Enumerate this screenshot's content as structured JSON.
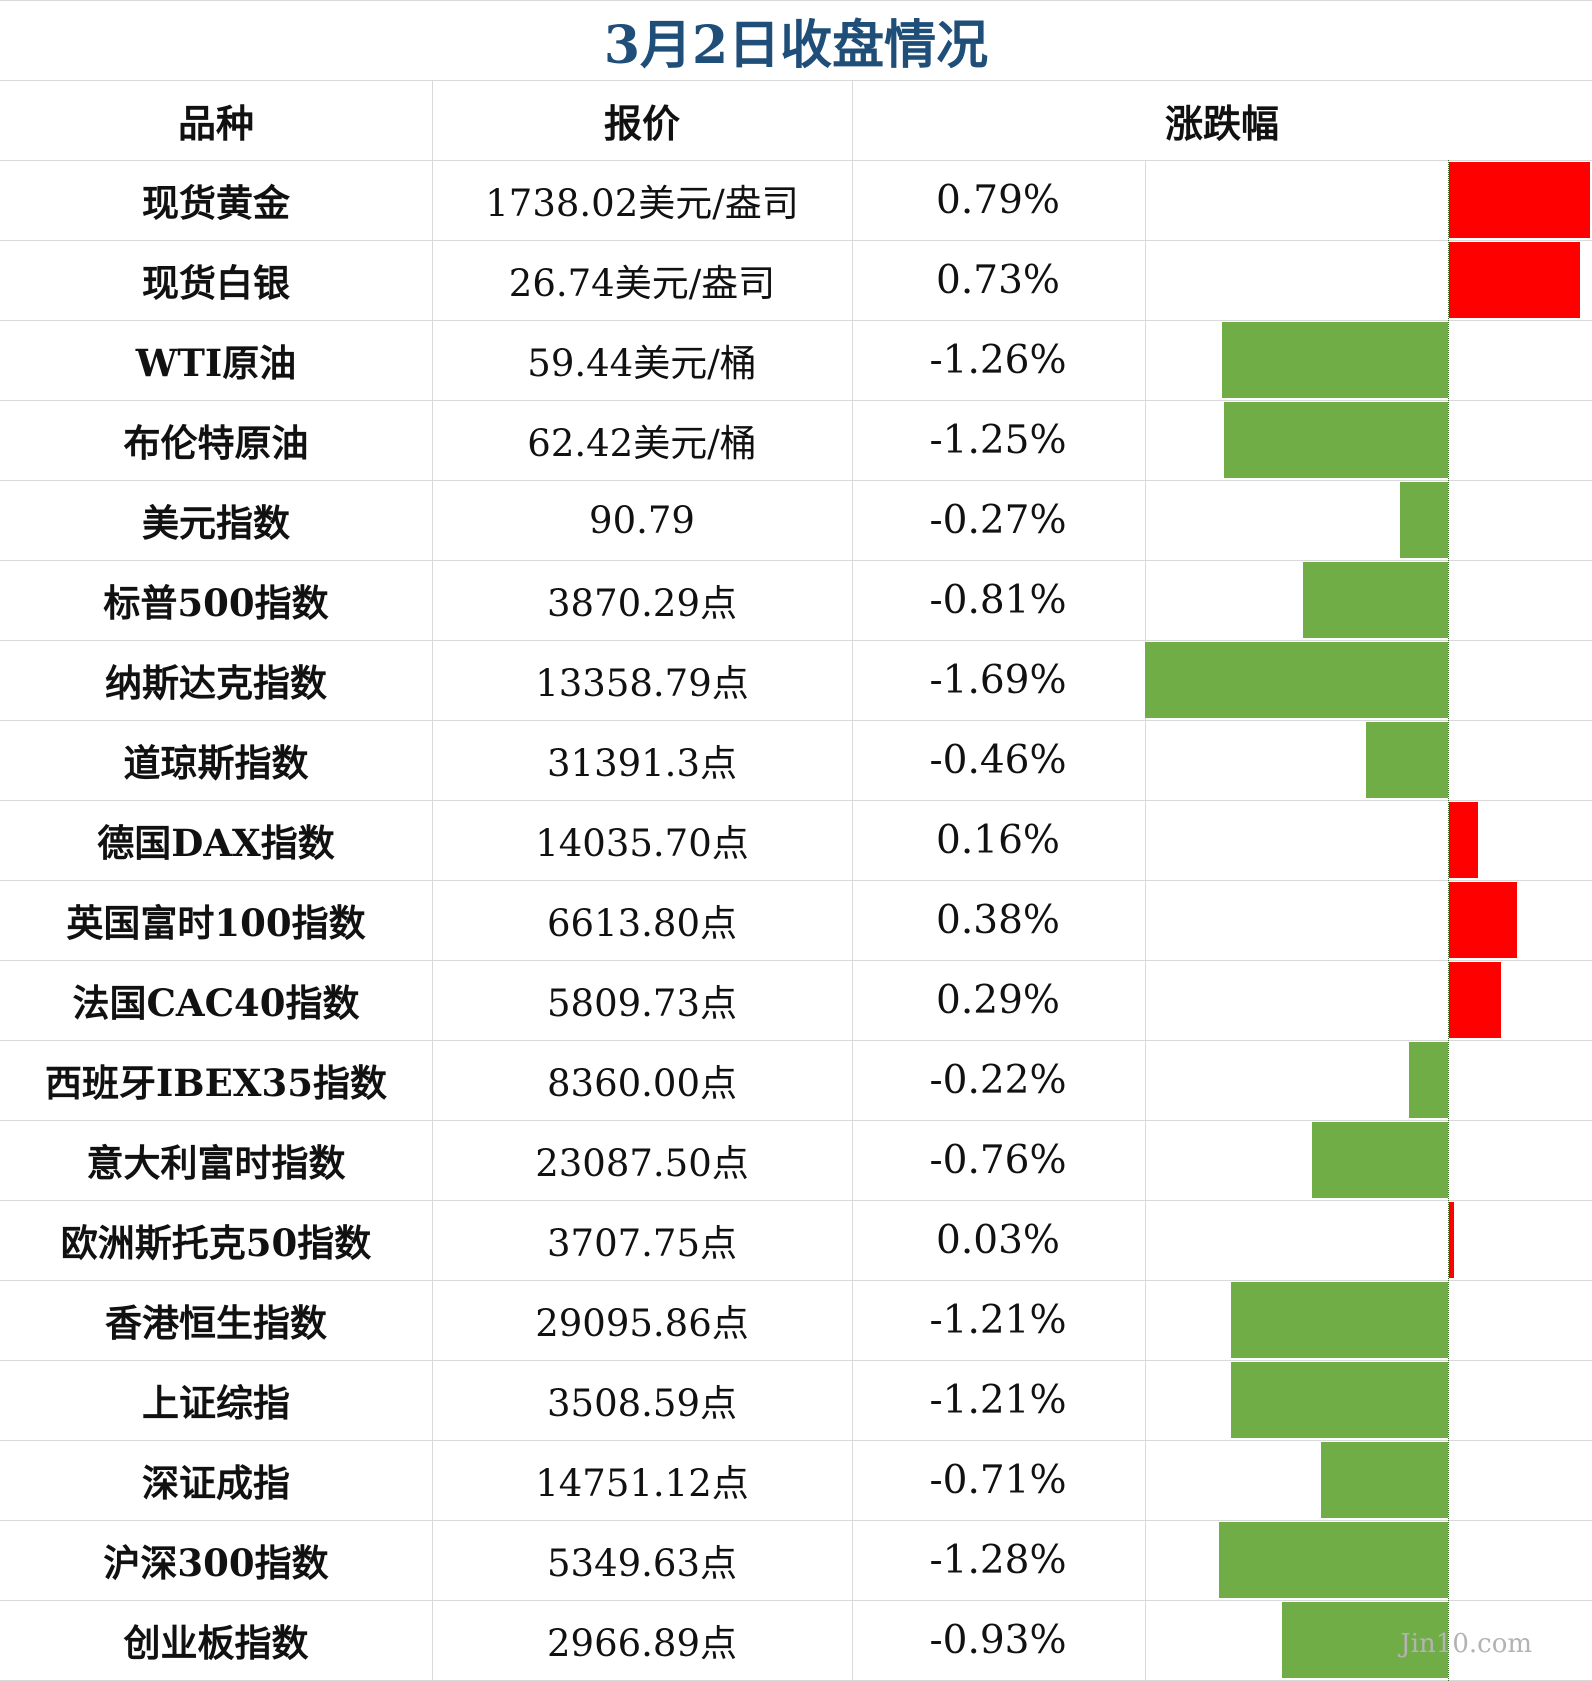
{
  "title": "3月2日收盘情况",
  "headers": {
    "name": "品种",
    "price": "报价",
    "change": "涨跌幅"
  },
  "watermark": "Jin10.com",
  "colors": {
    "up": "#ff0000",
    "down": "#70ad47",
    "title": "#1f4e79"
  },
  "chart_data": {
    "type": "bar",
    "orientation": "horizontal",
    "unit": "%",
    "categories": [
      "现货黄金",
      "现货白银",
      "WTI原油",
      "布伦特原油",
      "美元指数",
      "标普500指数",
      "纳斯达克指数",
      "道琼斯指数",
      "德国DAX指数",
      "英国富时100指数",
      "法国CAC40指数",
      "西班牙IBEX35指数",
      "意大利富时指数",
      "欧洲斯托克50指数",
      "香港恒生指数",
      "上证综指",
      "深证成指",
      "沪深300指数",
      "创业板指数"
    ],
    "values": [
      0.79,
      0.73,
      -1.26,
      -1.25,
      -0.27,
      -0.81,
      -1.69,
      -0.46,
      0.16,
      0.38,
      0.29,
      -0.22,
      -0.76,
      0.03,
      -1.21,
      -1.21,
      -0.71,
      -1.28,
      -0.93
    ]
  },
  "rows": [
    {
      "name": "现货黄金",
      "price": "1738.02美元/盎司",
      "change": "0.79%"
    },
    {
      "name": "现货白银",
      "price": "26.74美元/盎司",
      "change": "0.73%"
    },
    {
      "name": "WTI原油",
      "price": "59.44美元/桶",
      "change": "-1.26%"
    },
    {
      "name": "布伦特原油",
      "price": "62.42美元/桶",
      "change": "-1.25%"
    },
    {
      "name": "美元指数",
      "price": "90.79",
      "change": "-0.27%"
    },
    {
      "name": "标普500指数",
      "price": "3870.29点",
      "change": "-0.81%"
    },
    {
      "name": "纳斯达克指数",
      "price": "13358.79点",
      "change": "-1.69%"
    },
    {
      "name": "道琼斯指数",
      "price": "31391.3点",
      "change": "-0.46%"
    },
    {
      "name": "德国DAX指数",
      "price": "14035.70点",
      "change": "0.16%"
    },
    {
      "name": "英国富时100指数",
      "price": "6613.80点",
      "change": "0.38%"
    },
    {
      "name": "法国CAC40指数",
      "price": "5809.73点",
      "change": "0.29%"
    },
    {
      "name": "西班牙IBEX35指数",
      "price": "8360.00点",
      "change": "-0.22%"
    },
    {
      "name": "意大利富时指数",
      "price": "23087.50点",
      "change": "-0.76%"
    },
    {
      "name": "欧洲斯托克50指数",
      "price": "3707.75点",
      "change": "0.03%"
    },
    {
      "name": "香港恒生指数",
      "price": "29095.86点",
      "change": "-1.21%"
    },
    {
      "name": "上证综指",
      "price": "3508.59点",
      "change": "-1.21%"
    },
    {
      "name": "深证成指",
      "price": "14751.12点",
      "change": "-0.71%"
    },
    {
      "name": "沪深300指数",
      "price": "5349.63点",
      "change": "-1.28%"
    },
    {
      "name": "创业板指数",
      "price": "2966.89点",
      "change": "-0.93%"
    }
  ]
}
